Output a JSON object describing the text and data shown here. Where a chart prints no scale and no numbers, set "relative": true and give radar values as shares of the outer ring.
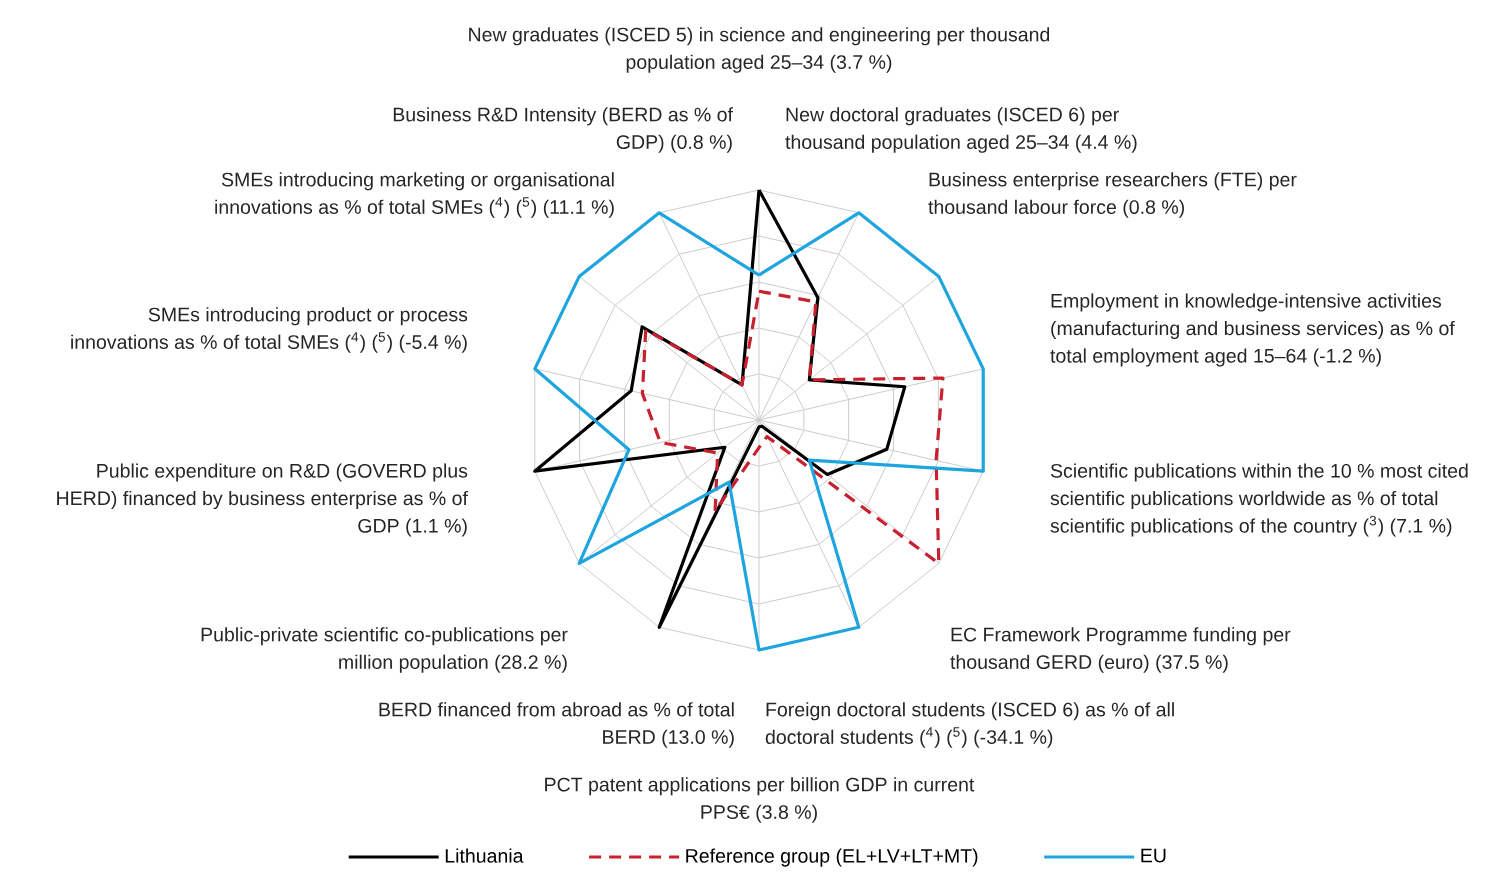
{
  "chart_data": {
    "type": "radar",
    "relative": true,
    "grid": true,
    "legend": "bottom",
    "categories": [
      "New graduates (ISCED 5) in science and engineering per thousand population aged 25–34 (3.7 %)",
      "New doctoral graduates (ISCED 6) per thousand population aged 25–34 (4.4 %)",
      "Business enterprise researchers (FTE) per thousand labour force (0.8 %)",
      "Employment in knowledge-intensive activities (manufacturing and business services) as % of total employment aged 15–64 (-1.2 %)",
      "Scientific publications within the 10 % most cited scientific publications worldwide as % of total scientific publications of the country ($^{3}$) (7.1 %)",
      "EC Framework Programme funding per thousand GERD (euro) (37.5 %)",
      "Foreign doctoral students (ISCED 6) as % of all doctoral students ($^{4}$) ($^{5}$) (-34.1 %)",
      "PCT patent applications per billion GDP in current PPS€ (3.8 %)",
      "BERD financed from abroad as % of total BERD (13.0 %)",
      "Public-private scientific co-publications per million population (28.2 %)",
      "Public expenditure on R&D (GOVERD plus HERD) financed by business enterprise as % of GDP (1.1 %)",
      "SMEs introducing product or process innovations as % of total SMEs ($^{4}$) ($^{5}$) (-5.4 %)",
      "SMEs introducing marketing or organisational innovations as % of total SMEs ($^{4}$) ($^{5}$) (11.1 %)",
      "Business R&D Intensity (BERD as % of GDP) (0.8 %)"
    ],
    "series": [
      {
        "name": "Lithuania",
        "color": "#000000",
        "line_style": "solid",
        "values": [
          1.0,
          0.59,
          0.28,
          0.65,
          0.57,
          0.38,
          0.03,
          0.03,
          1.0,
          0.19,
          1.0,
          0.57,
          0.65,
          0.17
        ]
      },
      {
        "name": "Reference group (EL+LV+LT+MT)",
        "color": "#c8202f",
        "line_style": "dashed",
        "values": [
          0.56,
          0.57,
          0.28,
          0.82,
          0.79,
          1.0,
          0.08,
          0.12,
          0.44,
          0.23,
          0.44,
          0.52,
          0.63,
          0.17
        ]
      },
      {
        "name": "EU",
        "color": "#1ea5e0",
        "line_style": "solid",
        "values": [
          0.63,
          1.0,
          1.0,
          1.0,
          1.0,
          0.28,
          1.0,
          1.0,
          0.3,
          1.0,
          0.58,
          1.0,
          1.0,
          1.0
        ]
      }
    ]
  }
}
